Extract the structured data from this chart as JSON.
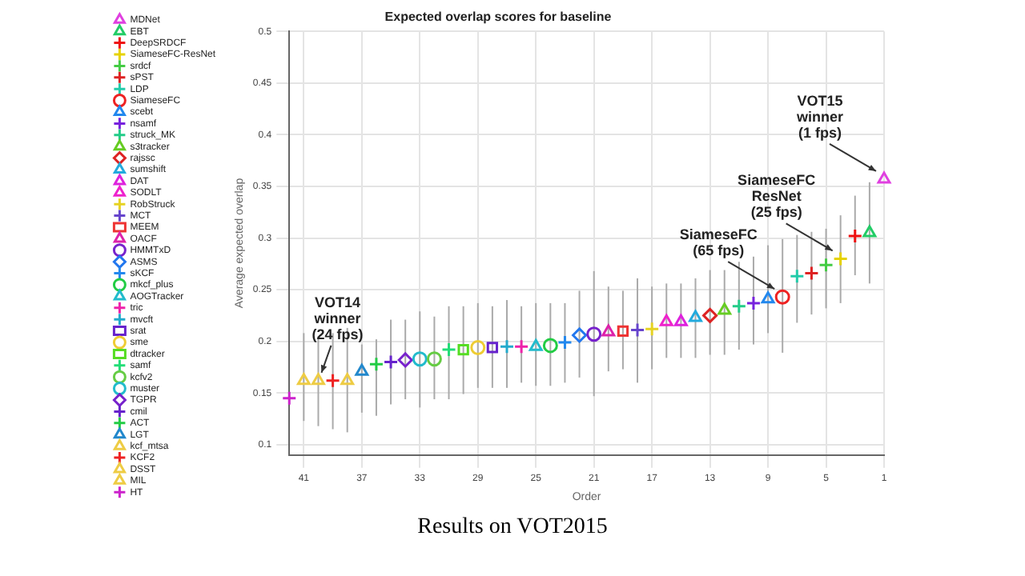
{
  "chart_data": {
    "type": "scatter",
    "title": "Expected overlap scores for baseline",
    "xlabel": "Order",
    "ylabel": "Average expected overlap",
    "xlim": [
      42,
      1
    ],
    "xticks": [
      41,
      37,
      33,
      29,
      25,
      21,
      17,
      13,
      9,
      5,
      1
    ],
    "ylim": [
      0.09,
      0.5
    ],
    "yticks": [
      0.1,
      0.15,
      0.2,
      0.25,
      0.3,
      0.35,
      0.4,
      0.45,
      0.5
    ],
    "grid": true,
    "legend": "left",
    "annotations": [
      {
        "text": "VOT14\nwinner\n(24 fps)",
        "x": 40,
        "y": 0.162
      },
      {
        "text": "SiameseFC\n(65 fps)",
        "x": 8,
        "y": 0.243
      },
      {
        "text": "SiameseFC\nResNet\n(25 fps)",
        "x": 4,
        "y": 0.28
      },
      {
        "text": "VOT15\nwinner\n(1 fps)",
        "x": 1,
        "y": 0.357
      },
      "Results on VOT2015"
    ],
    "series": [
      {
        "name": "MDNet",
        "color": "#e040e0",
        "marker": "triangle",
        "x": [
          1
        ],
        "values": [
          0.357
        ],
        "errors": [
          null
        ]
      },
      {
        "name": "EBT",
        "color": "#22cc66",
        "marker": "triangle",
        "x": [
          2
        ],
        "values": [
          0.305
        ],
        "errors": [
          [
            0.256,
            0.354
          ]
        ]
      },
      {
        "name": "DeepSRDCF",
        "color": "#ee1111",
        "marker": "cross",
        "x": [
          3
        ],
        "values": [
          0.302
        ],
        "errors": [
          [
            0.264,
            0.341
          ]
        ]
      },
      {
        "name": "SiameseFC-ResNet",
        "color": "#e6d200",
        "marker": "cross",
        "x": [
          4
        ],
        "values": [
          0.28
        ],
        "errors": [
          [
            0.237,
            0.322
          ]
        ]
      },
      {
        "name": "srdcf",
        "color": "#44cc44",
        "marker": "cross",
        "x": [
          5
        ],
        "values": [
          0.274
        ],
        "errors": [
          [
            0.232,
            0.309
          ]
        ]
      },
      {
        "name": "sPST",
        "color": "#dd2222",
        "marker": "cross",
        "x": [
          6
        ],
        "values": [
          0.266
        ],
        "errors": [
          [
            0.226,
            0.306
          ]
        ]
      },
      {
        "name": "LDP",
        "color": "#22ccaa",
        "marker": "cross",
        "x": [
          7
        ],
        "values": [
          0.263
        ],
        "errors": [
          [
            0.218,
            0.303
          ]
        ]
      },
      {
        "name": "SiameseFC",
        "color": "#ee2222",
        "marker": "circle",
        "x": [
          8
        ],
        "values": [
          0.243
        ],
        "errors": [
          [
            0.189,
            0.299
          ]
        ]
      },
      {
        "name": "scebt",
        "color": "#2288ee",
        "marker": "triangle",
        "x": [
          9
        ],
        "values": [
          0.241
        ],
        "errors": [
          [
            0.208,
            0.293
          ]
        ]
      },
      {
        "name": "nsamf",
        "color": "#7722dd",
        "marker": "cross",
        "x": [
          10
        ],
        "values": [
          0.237
        ],
        "errors": [
          [
            0.197,
            0.282
          ]
        ]
      },
      {
        "name": "struck_MK",
        "color": "#22cc88",
        "marker": "cross",
        "x": [
          11
        ],
        "values": [
          0.234
        ],
        "errors": [
          [
            0.192,
            0.277
          ]
        ]
      },
      {
        "name": "s3tracker",
        "color": "#66cc22",
        "marker": "triangle",
        "x": [
          12
        ],
        "values": [
          0.23
        ],
        "errors": [
          [
            0.187,
            0.269
          ]
        ]
      },
      {
        "name": "rajssc",
        "color": "#dd2222",
        "marker": "diamond",
        "x": [
          13
        ],
        "values": [
          0.225
        ],
        "errors": [
          [
            0.187,
            0.269
          ]
        ]
      },
      {
        "name": "sumshift",
        "color": "#22aadd",
        "marker": "triangle",
        "x": [
          14
        ],
        "values": [
          0.223
        ],
        "errors": [
          [
            0.184,
            0.261
          ]
        ]
      },
      {
        "name": "DAT",
        "color": "#dd22dd",
        "marker": "triangle",
        "x": [
          15
        ],
        "values": [
          0.219
        ],
        "errors": [
          [
            0.184,
            0.256
          ]
        ]
      },
      {
        "name": "SODLT",
        "color": "#ee22cc",
        "marker": "triangle",
        "x": [
          16
        ],
        "values": [
          0.219
        ],
        "errors": [
          [
            0.184,
            0.256
          ]
        ]
      },
      {
        "name": "RobStruck",
        "color": "#e6d222",
        "marker": "cross",
        "x": [
          17
        ],
        "values": [
          0.212
        ],
        "errors": [
          [
            0.173,
            0.253
          ]
        ]
      },
      {
        "name": "MCT",
        "color": "#6644cc",
        "marker": "cross",
        "x": [
          18
        ],
        "values": [
          0.211
        ],
        "errors": [
          [
            0.16,
            0.261
          ]
        ]
      },
      {
        "name": "MEEM",
        "color": "#ee3333",
        "marker": "square",
        "x": [
          19
        ],
        "values": [
          0.21
        ],
        "errors": [
          [
            0.173,
            0.249
          ]
        ]
      },
      {
        "name": "OACF",
        "color": "#dd22aa",
        "marker": "triangle",
        "x": [
          20
        ],
        "values": [
          0.209
        ],
        "errors": [
          [
            0.171,
            0.253
          ]
        ]
      },
      {
        "name": "HMMTxD",
        "color": "#7722cc",
        "marker": "circle",
        "x": [
          21
        ],
        "values": [
          0.207
        ],
        "errors": [
          [
            0.147,
            0.268
          ]
        ]
      },
      {
        "name": "ASMS",
        "color": "#2277ee",
        "marker": "diamond",
        "x": [
          22
        ],
        "values": [
          0.206
        ],
        "errors": [
          [
            0.165,
            0.249
          ]
        ]
      },
      {
        "name": "sKCF",
        "color": "#2288ee",
        "marker": "cross",
        "x": [
          23
        ],
        "values": [
          0.199
        ],
        "errors": [
          [
            0.16,
            0.237
          ]
        ]
      },
      {
        "name": "mkcf_plus",
        "color": "#22cc44",
        "marker": "circle",
        "x": [
          24
        ],
        "values": [
          0.196
        ],
        "errors": [
          [
            0.157,
            0.237
          ]
        ]
      },
      {
        "name": "AOGTracker",
        "color": "#22bbcc",
        "marker": "triangle",
        "x": [
          25
        ],
        "values": [
          0.195
        ],
        "errors": [
          [
            0.157,
            0.237
          ]
        ]
      },
      {
        "name": "tric",
        "color": "#ee22aa",
        "marker": "cross",
        "x": [
          26
        ],
        "values": [
          0.195
        ],
        "errors": [
          [
            0.16,
            0.234
          ]
        ]
      },
      {
        "name": "mvcft",
        "color": "#22aacc",
        "marker": "cross",
        "x": [
          27
        ],
        "values": [
          0.195
        ],
        "errors": [
          [
            0.155,
            0.24
          ]
        ]
      },
      {
        "name": "srat",
        "color": "#6622cc",
        "marker": "square",
        "x": [
          28
        ],
        "values": [
          0.194
        ],
        "errors": [
          [
            0.155,
            0.234
          ]
        ]
      },
      {
        "name": "sme",
        "color": "#eecc33",
        "marker": "circle",
        "x": [
          29
        ],
        "values": [
          0.194
        ],
        "errors": [
          [
            0.155,
            0.237
          ]
        ]
      },
      {
        "name": "dtracker",
        "color": "#55dd22",
        "marker": "square",
        "x": [
          30
        ],
        "values": [
          0.192
        ],
        "errors": [
          [
            0.149,
            0.234
          ]
        ]
      },
      {
        "name": "samf",
        "color": "#22dd77",
        "marker": "cross",
        "x": [
          31
        ],
        "values": [
          0.192
        ],
        "errors": [
          [
            0.144,
            0.234
          ]
        ]
      },
      {
        "name": "kcfv2",
        "color": "#66cc44",
        "marker": "circle",
        "x": [
          32
        ],
        "values": [
          0.183
        ],
        "errors": [
          [
            0.144,
            0.224
          ]
        ]
      },
      {
        "name": "muster",
        "color": "#22bbcc",
        "marker": "circle",
        "x": [
          33
        ],
        "values": [
          0.183
        ],
        "errors": [
          [
            0.136,
            0.229
          ]
        ]
      },
      {
        "name": "TGPR",
        "color": "#7722cc",
        "marker": "diamond",
        "x": [
          34
        ],
        "values": [
          0.182
        ],
        "errors": [
          [
            0.144,
            0.221
          ]
        ]
      },
      {
        "name": "cmil",
        "color": "#6622cc",
        "marker": "cross",
        "x": [
          35
        ],
        "values": [
          0.18
        ],
        "errors": [
          [
            0.139,
            0.221
          ]
        ]
      },
      {
        "name": "ACT",
        "color": "#22cc44",
        "marker": "cross",
        "x": [
          36
        ],
        "values": [
          0.178
        ],
        "errors": [
          [
            0.128,
            0.202
          ]
        ]
      },
      {
        "name": "LGT",
        "color": "#2288cc",
        "marker": "triangle",
        "x": [
          37
        ],
        "values": [
          0.171
        ],
        "errors": [
          [
            0.131,
            0.197
          ]
        ]
      },
      {
        "name": "kcf_mtsa",
        "color": "#eecc44",
        "marker": "triangle",
        "x": [
          38
        ],
        "values": [
          0.162
        ],
        "errors": [
          [
            0.112,
            0.213
          ]
        ]
      },
      {
        "name": "KCF2",
        "color": "#ee2222",
        "marker": "cross",
        "x": [
          39
        ],
        "values": [
          0.162
        ],
        "errors": [
          [
            0.115,
            0.208
          ]
        ]
      },
      {
        "name": "DSST",
        "color": "#eecc44",
        "marker": "triangle",
        "x": [
          40
        ],
        "values": [
          0.162
        ],
        "errors": [
          [
            0.118,
            0.205
          ]
        ]
      },
      {
        "name": "MIL",
        "color": "#eecc44",
        "marker": "triangle",
        "x": [
          41
        ],
        "values": [
          0.162
        ],
        "errors": [
          [
            0.123,
            0.208
          ]
        ]
      },
      {
        "name": "HT",
        "color": "#cc22cc",
        "marker": "cross",
        "x": [
          42
        ],
        "values": [
          0.145
        ],
        "errors": [
          null
        ]
      }
    ]
  }
}
